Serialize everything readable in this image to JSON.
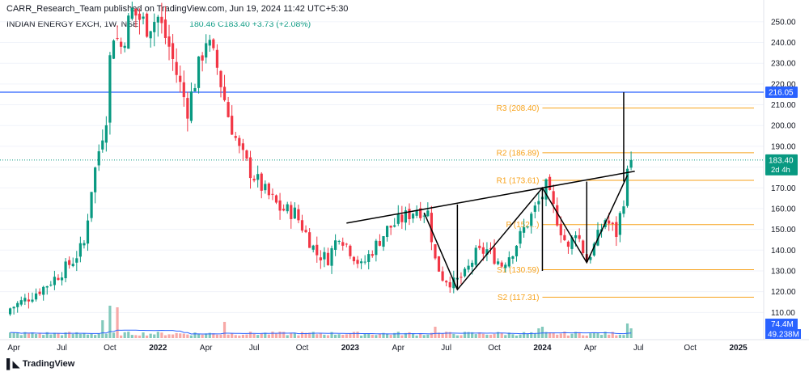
{
  "header": {
    "publisher_line": "CARR_Research_Team published on TradingView.com, Jun 19, 2024 11:42 UTC+5:30",
    "symbol_line": "INDIAN ENERGY EXCH, 1W, NSE",
    "ohlc_fragment": "180.46  C183.40  +3.73 (+2.08%)"
  },
  "brand": {
    "logo_icon": "tradingview-logo-icon",
    "name": "TradingView"
  },
  "colors": {
    "up": "#089981",
    "down": "#f23645",
    "vol_up": "#82c9bc",
    "vol_down": "#f7a9a7",
    "resistance": "#2962ff",
    "pivot": "#f7a21b",
    "ma": "#2962ff",
    "pattern": "#000000"
  },
  "chart_data": {
    "type": "candlestick",
    "interval": "1W",
    "y_axis": {
      "min": 100,
      "max": 255,
      "ticks": [
        110,
        120,
        130,
        140,
        150,
        160,
        170,
        180,
        190,
        200,
        210,
        220,
        230,
        240,
        250
      ]
    },
    "x_axis_labels": [
      "Apr",
      "Jul",
      "Oct",
      "2022",
      "Apr",
      "Jul",
      "Oct",
      "2023",
      "Apr",
      "Jul",
      "Oct",
      "2024",
      "Apr",
      "Jul",
      "Oct",
      "2025"
    ],
    "last_price": {
      "value": 183.4,
      "label": "183.40",
      "countdown": "2d 4h"
    },
    "resistance_line": {
      "value": 216.05,
      "label": "216.05"
    },
    "pivot_levels": [
      {
        "name": "R3",
        "label": "R3 (208.40)",
        "value": 208.4
      },
      {
        "name": "R2",
        "label": "R2 (186.89)",
        "value": 186.89
      },
      {
        "name": "R1",
        "label": "R1 (173.61)",
        "value": 173.61
      },
      {
        "name": "P",
        "label": "P (152...)",
        "value": 152.3
      },
      {
        "name": "S1",
        "label": "S1 (130.59)",
        "value": 130.59
      },
      {
        "name": "S2",
        "label": "S2 (117.31)",
        "value": 117.31
      }
    ],
    "volume": {
      "last_label": "74.4M",
      "ma_label": "49.238M"
    },
    "path_anchors": [
      [
        "2021-03-29",
        112
      ],
      [
        "2021-04-26",
        116
      ],
      [
        "2021-05-31",
        122
      ],
      [
        "2021-06-28",
        128
      ],
      [
        "2021-07-26",
        135
      ],
      [
        "2021-08-16",
        143
      ],
      [
        "2021-08-30",
        170
      ],
      [
        "2021-09-13",
        188
      ],
      [
        "2021-09-27",
        205
      ],
      [
        "2021-10-04",
        232
      ],
      [
        "2021-10-11",
        245
      ],
      [
        "2021-10-25",
        238
      ],
      [
        "2021-11-15",
        255
      ],
      [
        "2021-12-13",
        248
      ],
      [
        "2022-01-03",
        252
      ],
      [
        "2022-01-24",
        238
      ],
      [
        "2022-02-07",
        225
      ],
      [
        "2022-02-28",
        208
      ],
      [
        "2022-03-21",
        228
      ],
      [
        "2022-04-04",
        242
      ],
      [
        "2022-04-25",
        228
      ],
      [
        "2022-05-16",
        205
      ],
      [
        "2022-06-06",
        188
      ],
      [
        "2022-06-27",
        178
      ],
      [
        "2022-07-25",
        168
      ],
      [
        "2022-08-22",
        160
      ],
      [
        "2022-09-19",
        158
      ],
      [
        "2022-10-10",
        148
      ],
      [
        "2022-10-31",
        138
      ],
      [
        "2022-11-21",
        136
      ],
      [
        "2022-12-12",
        148
      ],
      [
        "2023-01-02",
        140
      ],
      [
        "2023-01-23",
        132
      ],
      [
        "2023-02-13",
        140
      ],
      [
        "2023-03-13",
        150
      ],
      [
        "2023-04-10",
        155
      ],
      [
        "2023-05-08",
        160
      ],
      [
        "2023-05-29",
        158
      ],
      [
        "2023-06-12",
        135
      ],
      [
        "2023-06-26",
        127
      ],
      [
        "2023-07-17",
        124
      ],
      [
        "2023-08-07",
        128
      ],
      [
        "2023-08-28",
        138
      ],
      [
        "2023-09-18",
        140
      ],
      [
        "2023-10-16",
        133
      ],
      [
        "2023-11-06",
        140
      ],
      [
        "2023-11-27",
        150
      ],
      [
        "2023-12-25",
        163
      ],
      [
        "2024-01-08",
        170
      ],
      [
        "2024-01-29",
        155
      ],
      [
        "2024-02-19",
        140
      ],
      [
        "2024-03-04",
        150
      ],
      [
        "2024-03-25",
        135
      ],
      [
        "2024-04-08",
        142
      ],
      [
        "2024-04-29",
        155
      ],
      [
        "2024-05-20",
        148
      ],
      [
        "2024-06-03",
        165
      ],
      [
        "2024-06-10",
        176
      ],
      [
        "2024-06-17",
        183.4
      ]
    ],
    "volume_peaks": [
      [
        "2021-10-04",
        40
      ],
      [
        "2021-10-18",
        38
      ],
      [
        "2021-09-20",
        22
      ],
      [
        "2022-05-09",
        20
      ],
      [
        "2023-06-12",
        14
      ],
      [
        "2023-12-25",
        12
      ],
      [
        "2024-01-01",
        14
      ],
      [
        "2024-06-10",
        18
      ],
      [
        "2024-06-17",
        12
      ]
    ],
    "annotations": {
      "rising_trendline": [
        [
          "2022-12-26",
          153
        ],
        [
          "2024-06-24",
          178
        ]
      ],
      "pattern_path": [
        [
          "2023-05-22",
          158
        ],
        [
          "2023-07-24",
          121
        ],
        [
          "2024-01-01",
          170
        ],
        [
          "2024-03-25",
          134
        ],
        [
          "2024-06-10",
          176
        ]
      ],
      "vertical_lines": [
        [
          "2023-07-24",
          121,
          162
        ],
        [
          "2024-01-01",
          170,
          130
        ],
        [
          "2024-03-25",
          134,
          173
        ],
        [
          "2024-06-03",
          216,
          173
        ]
      ]
    }
  }
}
